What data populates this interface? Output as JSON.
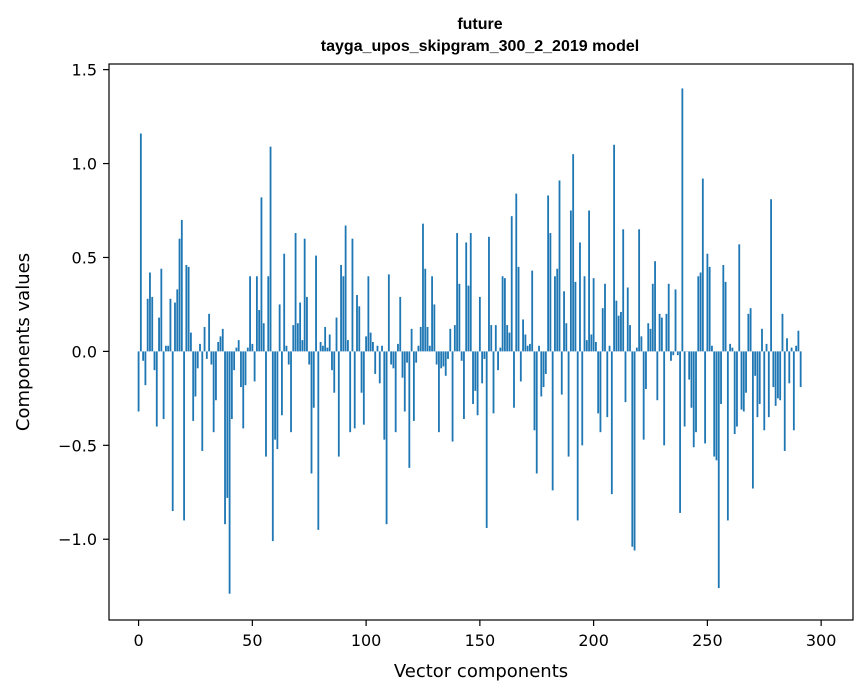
{
  "chart_data": {
    "type": "bar",
    "title": "future",
    "subtitle": "tayga_upos_skipgram_300_2_2019 model",
    "xlabel": "Vector components",
    "ylabel": "Components values",
    "xlim": [
      -13,
      314
    ],
    "ylim": [
      -1.43,
      1.53
    ],
    "xticks": [
      0,
      50,
      100,
      150,
      200,
      250,
      300
    ],
    "yticks": [
      -1.0,
      -0.5,
      0.0,
      0.5,
      1.0,
      1.5
    ],
    "ytick_labels": [
      "−1.0",
      "−0.5",
      "0.0",
      "0.5",
      "1.0",
      "1.5"
    ],
    "bar_color": "#1f77b4",
    "values": [
      -0.32,
      1.16,
      -0.05,
      -0.18,
      0.28,
      0.42,
      0.29,
      -0.1,
      -0.4,
      0.18,
      0.44,
      -0.36,
      0.03,
      0.03,
      0.28,
      -0.85,
      0.26,
      0.33,
      0.6,
      0.7,
      -0.9,
      0.46,
      0.45,
      0.1,
      -0.37,
      -0.24,
      -0.09,
      0.04,
      -0.53,
      0.13,
      -0.04,
      0.2,
      -0.07,
      -0.43,
      -0.26,
      0.05,
      0.08,
      0.12,
      -0.92,
      -0.78,
      -1.29,
      -0.36,
      -0.1,
      0.02,
      0.06,
      -0.19,
      -0.41,
      -0.18,
      0.02,
      0.4,
      0.04,
      -0.16,
      0.4,
      0.22,
      0.82,
      0.15,
      -0.56,
      0.4,
      1.09,
      -1.01,
      -0.47,
      -0.52,
      0.25,
      -0.34,
      0.52,
      0.03,
      -0.07,
      -0.43,
      0.14,
      0.63,
      0.15,
      0.26,
      0.06,
      0.6,
      0.29,
      -0.07,
      -0.65,
      -0.3,
      0.51,
      -0.95,
      0.05,
      0.03,
      0.13,
      0.02,
      0.09,
      -0.1,
      -0.22,
      0.18,
      -0.56,
      0.46,
      0.4,
      0.67,
      0.06,
      -0.43,
      0.6,
      -0.41,
      0.3,
      0.24,
      -0.22,
      -0.39,
      0.08,
      0.4,
      0.1,
      0.05,
      -0.12,
      0.03,
      -0.17,
      0.03,
      -0.47,
      -0.92,
      0.41,
      -0.07,
      -0.09,
      -0.43,
      0.04,
      0.29,
      -0.14,
      -0.32,
      -0.06,
      -0.62,
      0.12,
      -0.37,
      -0.06,
      0.03,
      0.13,
      0.68,
      0.44,
      0.13,
      0.03,
      0.4,
      0.25,
      -0.07,
      -0.43,
      -0.09,
      -0.08,
      -0.13,
      -0.04,
      0.12,
      -0.48,
      0.14,
      0.63,
      0.36,
      -0.05,
      -0.36,
      0.58,
      0.35,
      0.63,
      -0.28,
      -0.21,
      -0.34,
      0.29,
      -0.17,
      -0.04,
      -0.94,
      0.61,
      0.14,
      -0.33,
      0.14,
      -0.1,
      0.02,
      0.4,
      0.39,
      0.14,
      0.1,
      0.72,
      -0.3,
      0.84,
      0.45,
      -0.16,
      0.17,
      0.09,
      0.03,
      0.04,
      0.43,
      -0.42,
      -0.65,
      0.03,
      -0.24,
      -0.19,
      -0.12,
      0.83,
      0.63,
      -0.74,
      0.4,
      0.44,
      0.91,
      -0.23,
      0.32,
      0.15,
      -0.56,
      0.75,
      1.05,
      0.37,
      -0.9,
      0.58,
      -0.5,
      0.4,
      0.06,
      0.75,
      0.09,
      0.39,
      0.05,
      -0.33,
      -0.43,
      0.23,
      0.36,
      -0.35,
      0.03,
      -0.76,
      1.1,
      0.27,
      0.19,
      0.21,
      0.65,
      -0.27,
      0.34,
      0.14,
      -1.04,
      -1.06,
      0.02,
      0.65,
      0.08,
      -0.47,
      -0.2,
      0.15,
      0.12,
      0.36,
      0.48,
      -0.26,
      0.2,
      0.18,
      -0.5,
      0.2,
      0.36,
      -0.05,
      -0.02,
      0.33,
      -0.02,
      -0.86,
      1.4,
      -0.4,
      0.0,
      -0.15,
      -0.3,
      -0.51,
      -0.43,
      0.4,
      0.42,
      0.92,
      -0.49,
      0.52,
      0.45,
      0.03,
      -0.56,
      -0.58,
      -1.26,
      -0.28,
      0.46,
      0.37,
      -0.9,
      0.04,
      0.02,
      -0.44,
      -0.4,
      0.57,
      -0.31,
      -0.32,
      -0.22,
      0.2,
      0.23,
      -0.73,
      -0.13,
      -0.35,
      -0.28,
      0.12,
      -0.42,
      0.04,
      -0.35,
      0.81,
      -0.19,
      -0.29,
      -0.25,
      -0.26,
      0.2,
      -0.53,
      0.07,
      -0.17,
      0.02,
      -0.42,
      0.03,
      0.11,
      -0.19
    ]
  }
}
